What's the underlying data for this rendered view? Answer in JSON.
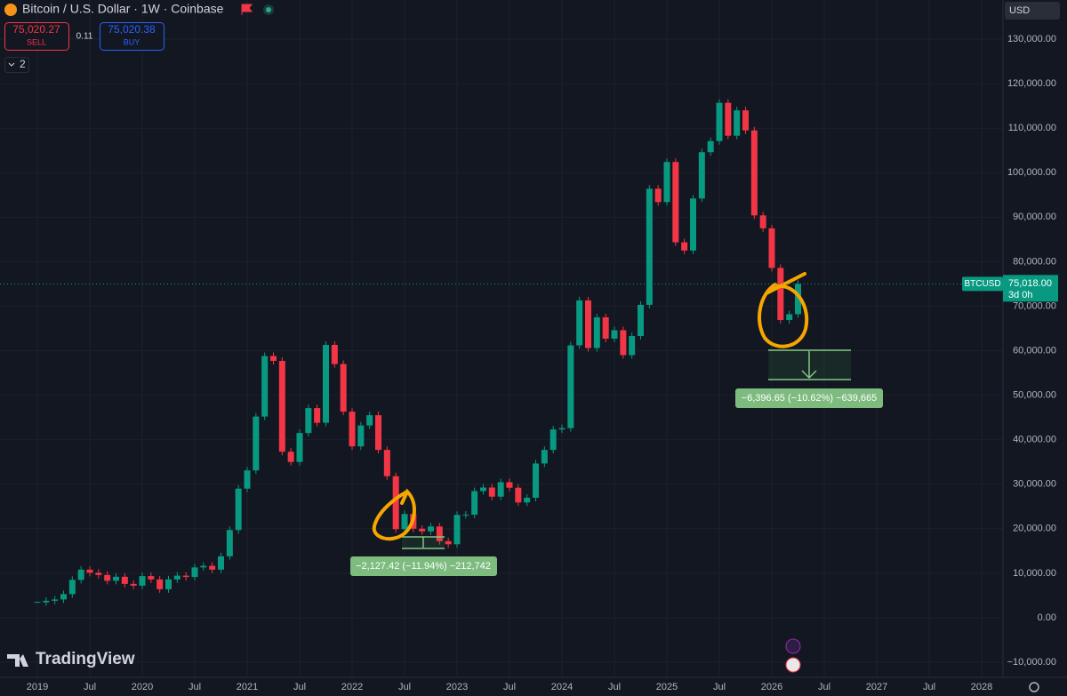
{
  "toolbar": {
    "symbol_title": "Bitcoin / U.S. Dollar · 1W · Coinbase",
    "sell_price": "75,020.27",
    "sell_label": "SELL",
    "spread": "0.11",
    "buy_price": "75,020.38",
    "buy_label": "BUY",
    "indicator_count": "2",
    "currency": "USD"
  },
  "branding": {
    "logo_text": "TradingView"
  },
  "chart_data": {
    "type": "candlestick",
    "categories": [
      "2019",
      null,
      null,
      null,
      null,
      null,
      "Jul",
      null,
      null,
      null,
      null,
      null,
      "2020",
      null,
      null,
      null,
      null,
      null,
      "Jul",
      null,
      null,
      null,
      null,
      null,
      "2021",
      null,
      null,
      null,
      null,
      null,
      "Jul",
      null,
      null,
      null,
      null,
      null,
      "2022",
      null,
      null,
      null,
      null,
      null,
      "Jul",
      null,
      null,
      null,
      null,
      null,
      "2023",
      null,
      null,
      null,
      null,
      null,
      "Jul",
      null,
      null,
      null,
      null,
      null,
      "2024",
      null,
      null,
      null,
      null,
      null,
      "Jul",
      null,
      null,
      null,
      null,
      null,
      "2025",
      null,
      null,
      null,
      null,
      null,
      "Jul",
      null,
      null,
      null,
      null,
      null,
      "2026",
      null,
      null,
      null,
      null,
      null,
      "Jul",
      null,
      null,
      null,
      null,
      null,
      "2027",
      null,
      null,
      null,
      null,
      null,
      "Jul",
      null,
      null,
      null,
      null,
      null,
      "2028"
    ],
    "values": [
      3450,
      3800,
      4100,
      5300,
      8500,
      10800,
      10100,
      9600,
      8300,
      9200,
      7600,
      7200,
      9350,
      8600,
      6400,
      8600,
      9450,
      9150,
      11300,
      11650,
      10800,
      13800,
      19700,
      29000,
      33100,
      45200,
      58800,
      57700,
      37300,
      35000,
      41500,
      47100,
      43800,
      61300,
      57000,
      46300,
      38500,
      43200,
      45500,
      37700,
      31800,
      19900,
      23300,
      20000,
      19400,
      20500,
      17200,
      16500,
      23100,
      23150,
      28450,
      29250,
      27200,
      30450,
      29200,
      25900,
      26950,
      34650,
      37700,
      42300,
      42600,
      61200,
      71300,
      60600,
      67500,
      62700,
      64600,
      59000,
      63300,
      70300,
      96400,
      93400,
      102400,
      84350,
      82500,
      94200,
      104600,
      107100,
      115700,
      108300,
      114000,
      109500,
      90400,
      87500,
      78600,
      66900,
      68200,
      75018,
      null,
      null,
      null,
      null,
      null,
      null,
      null,
      null,
      null,
      null,
      null,
      null,
      null,
      null,
      null,
      null,
      null,
      null,
      null,
      null,
      null
    ],
    "up_color": "#089981",
    "down_color": "#f23645",
    "ylim": [
      -13400,
      138800
    ],
    "yticks": [
      {
        "value": -10000,
        "label": "−10,000.00"
      },
      {
        "value": 0,
        "label": "0.00"
      },
      {
        "value": 10000,
        "label": "10,000.00"
      },
      {
        "value": 20000,
        "label": "20,000.00"
      },
      {
        "value": 30000,
        "label": "30,000.00"
      },
      {
        "value": 40000,
        "label": "40,000.00"
      },
      {
        "value": 50000,
        "label": "50,000.00"
      },
      {
        "value": 60000,
        "label": "60,000.00"
      },
      {
        "value": 70000,
        "label": "70,000.00"
      },
      {
        "value": 80000,
        "label": "80,000.00"
      },
      {
        "value": 90000,
        "label": "90,000.00"
      },
      {
        "value": 100000,
        "label": "100,000.00"
      },
      {
        "value": 110000,
        "label": "110,000.00"
      },
      {
        "value": 120000,
        "label": "120,000.00"
      },
      {
        "value": 130000,
        "label": "130,000.00"
      }
    ],
    "grid": true,
    "last_price": {
      "symbol": "BTCUSD",
      "value": 75018,
      "label": "75,018.00",
      "countdown": "3d 0h"
    },
    "annotations": [
      "−2,127.42 (−11.94%) −212,742",
      "−6,396.65 (−10.62%) −639,665"
    ]
  }
}
